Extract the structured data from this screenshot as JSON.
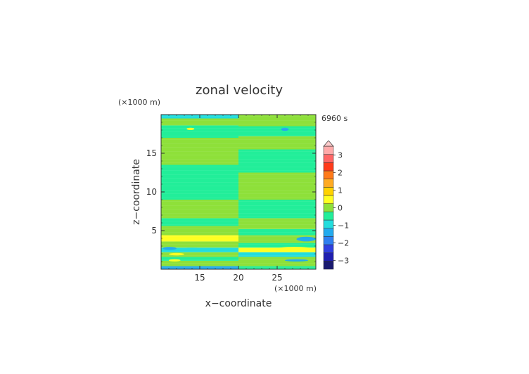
{
  "chart_data": {
    "type": "heatmap",
    "title": "zonal velocity",
    "xlabel": "x−coordinate",
    "ylabel": "z−coordinate",
    "x_unit": "(×1000 m)",
    "y_unit": "(×1000 m)",
    "time_label": "6960 s",
    "xlim": [
      10,
      30
    ],
    "ylim": [
      0,
      20
    ],
    "x_ticks": [
      15,
      20,
      25
    ],
    "y_ticks": [
      5,
      10,
      15
    ],
    "colorbar": {
      "min": -3.5,
      "max": 3.5,
      "step": 0.5,
      "tick_values": [
        3,
        2,
        1,
        0,
        -1,
        -2,
        -3
      ],
      "tick_labels": [
        "3",
        "2",
        "1",
        "0",
        "−1",
        "−2",
        "−3"
      ],
      "colors": [
        "#1a1a70",
        "#1f1fb0",
        "#2f3fe0",
        "#2f7ff0",
        "#22aaee",
        "#22dddd",
        "#22ee99",
        "#8ee03a",
        "#ffff22",
        "#ffd200",
        "#ffaa22",
        "#ff7a1a",
        "#ff3a1a",
        "#ff6666",
        "#ffaaaa"
      ],
      "over_color": "#ffcccc"
    },
    "field_bands": {
      "description_units": "z in km, u in m/s",
      "left_half": [
        {
          "z": [
            0.0,
            0.4
          ],
          "u": -1.1
        },
        {
          "z": [
            0.4,
            1.1
          ],
          "u": 0.3
        },
        {
          "z": [
            1.1,
            1.6
          ],
          "u": -0.3
        },
        {
          "z": [
            1.6,
            2.2
          ],
          "u": 0.3
        },
        {
          "z": [
            2.2,
            2.8
          ],
          "u": -0.6
        },
        {
          "z": [
            2.8,
            3.6
          ],
          "u": 0.3
        },
        {
          "z": [
            3.6,
            4.4
          ],
          "u": 0.8
        },
        {
          "z": [
            4.4,
            5.6
          ],
          "u": 0.3
        },
        {
          "z": [
            5.6,
            6.6
          ],
          "u": -0.3
        },
        {
          "z": [
            6.6,
            9.0
          ],
          "u": 0.3
        },
        {
          "z": [
            9.0,
            13.5
          ],
          "u": -0.3
        },
        {
          "z": [
            13.5,
            17.0
          ],
          "u": 0.3
        },
        {
          "z": [
            17.0,
            18.6
          ],
          "u": -0.3
        },
        {
          "z": [
            18.6,
            19.5
          ],
          "u": 0.3
        },
        {
          "z": [
            19.5,
            20.0
          ],
          "u": -0.6
        }
      ],
      "right_half": [
        {
          "z": [
            0.0,
            0.4
          ],
          "u": -0.3
        },
        {
          "z": [
            0.4,
            1.6
          ],
          "u": 0.3
        },
        {
          "z": [
            1.6,
            2.2
          ],
          "u": -0.6
        },
        {
          "z": [
            2.2,
            2.8
          ],
          "u": 0.6
        },
        {
          "z": [
            2.8,
            3.4
          ],
          "u": -0.3
        },
        {
          "z": [
            3.4,
            4.4
          ],
          "u": 0.3
        },
        {
          "z": [
            4.4,
            5.2
          ],
          "u": -0.3
        },
        {
          "z": [
            5.2,
            6.6
          ],
          "u": 0.3
        },
        {
          "z": [
            6.6,
            9.0
          ],
          "u": -0.3
        },
        {
          "z": [
            9.0,
            12.5
          ],
          "u": 0.3
        },
        {
          "z": [
            12.5,
            15.5
          ],
          "u": -0.3
        },
        {
          "z": [
            15.5,
            17.2
          ],
          "u": 0.3
        },
        {
          "z": [
            17.2,
            18.5
          ],
          "u": -0.3
        },
        {
          "z": [
            18.5,
            20.0
          ],
          "u": 0.3
        }
      ],
      "blobs": [
        {
          "x": [
            13.3,
            14.3
          ],
          "z": [
            18.0,
            18.3
          ],
          "u": 0.8
        },
        {
          "x": [
            25.5,
            26.5
          ],
          "z": [
            17.9,
            18.3
          ],
          "u": -1.1
        },
        {
          "x": [
            11.0,
            13.5
          ],
          "z": [
            3.6,
            4.2
          ],
          "u": 0.8
        },
        {
          "x": [
            27.5,
            30.0
          ],
          "z": [
            3.6,
            4.2
          ],
          "u": -1.1
        },
        {
          "x": [
            10.2,
            12.0
          ],
          "z": [
            2.5,
            2.9
          ],
          "u": -1.1
        },
        {
          "x": [
            12.5,
            15.5
          ],
          "z": [
            2.3,
            2.8
          ],
          "u": -0.6
        },
        {
          "x": [
            25.0,
            29.5
          ],
          "z": [
            2.4,
            2.9
          ],
          "u": 0.8
        },
        {
          "x": [
            11.0,
            13.0
          ],
          "z": [
            1.8,
            2.1
          ],
          "u": 0.8
        },
        {
          "x": [
            26.0,
            29.0
          ],
          "z": [
            1.0,
            1.3
          ],
          "u": -1.1
        },
        {
          "x": [
            11.0,
            12.5
          ],
          "z": [
            1.0,
            1.3
          ],
          "u": 0.8
        }
      ]
    }
  }
}
